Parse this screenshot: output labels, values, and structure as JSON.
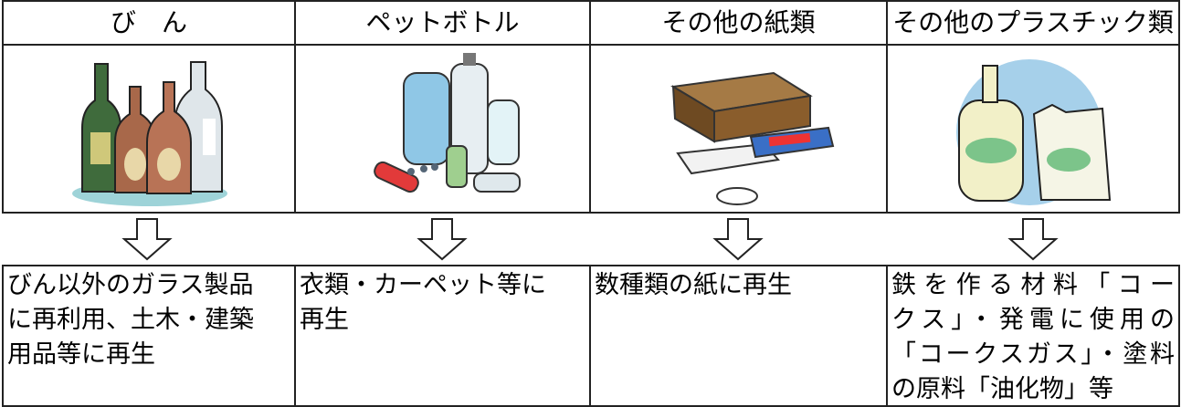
{
  "table": {
    "headers": [
      "び　ん",
      "ペットボトル",
      "その他の紙類",
      "その他のプラスチック類"
    ],
    "descriptions": [
      [
        "びん以外のガラス製品",
        "に再利用、土木・建築",
        "用品等に再生"
      ],
      [
        "衣類・カーペット等に",
        "再生"
      ],
      [
        "数種類の紙に再生"
      ],
      [
        "鉄を作る材料「コー",
        "クス」・発電に使用の",
        "「コークスガス」・塗料",
        "の原料「油化物」等"
      ]
    ]
  }
}
